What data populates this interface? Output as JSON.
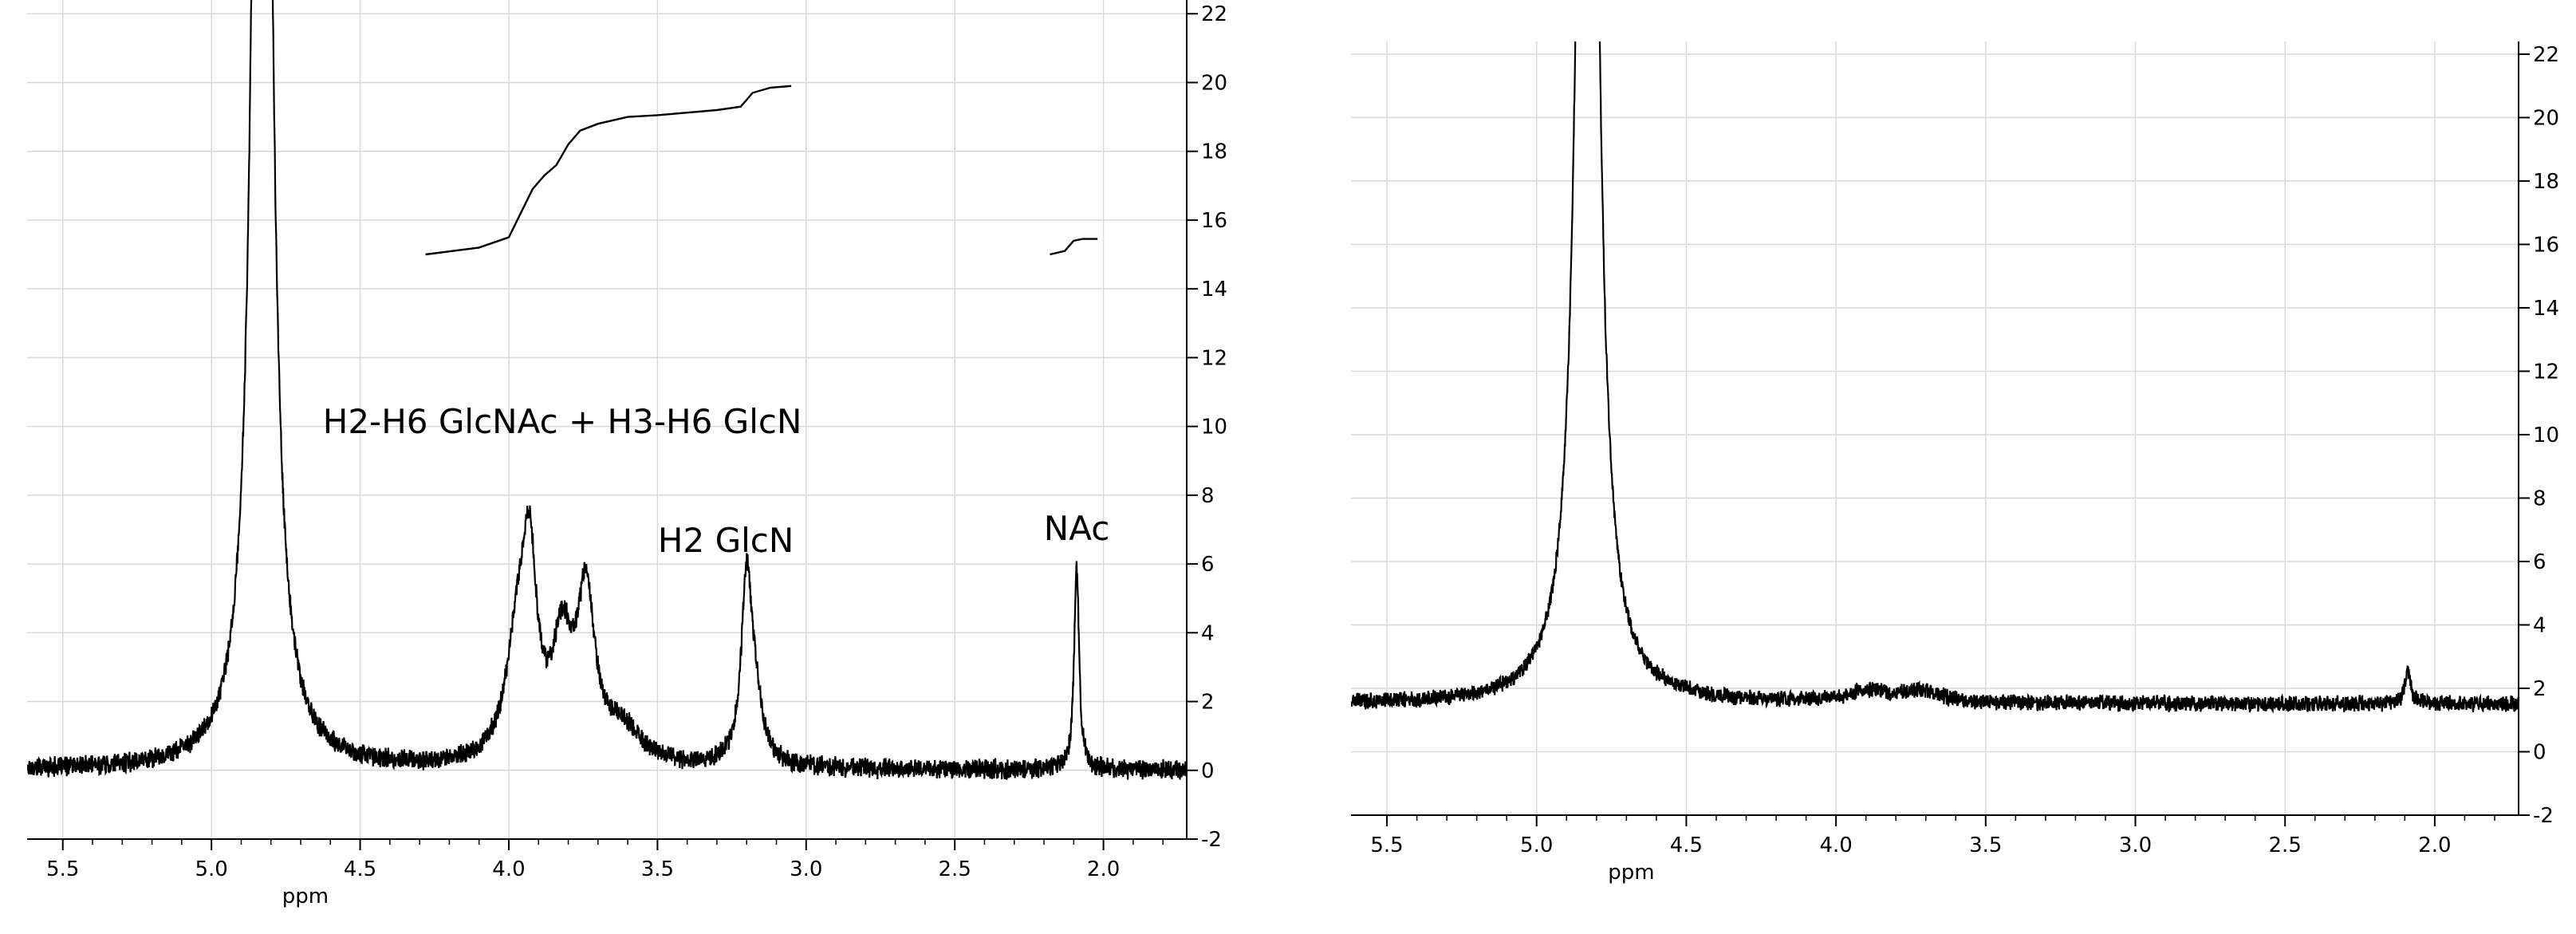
{
  "chart_data": [
    {
      "type": "line",
      "xlabel": "ppm",
      "xlim": [
        5.62,
        1.72
      ],
      "ylim": [
        -2,
        22.4
      ],
      "xticks": [
        5.5,
        5.0,
        4.5,
        4.0,
        3.5,
        3.0,
        2.5,
        2.0
      ],
      "xtick_labels": [
        "5.5",
        "5.0",
        "4.5",
        "4.0",
        "3.5",
        "3.0",
        "2.5",
        "2.0"
      ],
      "yticks": [
        -2,
        0,
        2,
        4,
        6,
        8,
        10,
        12,
        14,
        16,
        18,
        20,
        22
      ],
      "ytick_labels": [
        "-2",
        "0",
        "2",
        "4",
        "6",
        "8",
        "10",
        "12",
        "14",
        "16",
        "18",
        "20",
        "22"
      ],
      "grid": true,
      "baseline": 0,
      "noise": 0.25,
      "peaks": [
        {
          "center": 4.83,
          "height": 60,
          "width": 0.028
        },
        {
          "center": 3.97,
          "height": 3.3,
          "width": 0.045
        },
        {
          "center": 3.93,
          "height": 5.0,
          "width": 0.03
        },
        {
          "center": 3.82,
          "height": 3.2,
          "width": 0.04
        },
        {
          "center": 3.74,
          "height": 4.6,
          "width": 0.035
        },
        {
          "center": 3.62,
          "height": 1.0,
          "width": 0.08
        },
        {
          "center": 3.2,
          "height": 5.2,
          "width": 0.022
        },
        {
          "center": 3.17,
          "height": 1.5,
          "width": 0.03
        },
        {
          "center": 2.09,
          "height": 5.8,
          "width": 0.01
        }
      ],
      "integrals": [
        {
          "x": [
            4.28,
            4.1,
            4.0,
            3.96,
            3.92,
            3.88,
            3.84,
            3.8,
            3.76,
            3.7,
            3.6,
            3.5,
            3.3,
            3.22,
            3.18,
            3.12,
            3.05
          ],
          "y": [
            15.0,
            15.2,
            15.5,
            16.2,
            16.9,
            17.3,
            17.6,
            18.2,
            18.6,
            18.8,
            19.0,
            19.05,
            19.2,
            19.3,
            19.7,
            19.85,
            19.9
          ]
        },
        {
          "x": [
            2.18,
            2.13,
            2.1,
            2.07,
            2.02
          ],
          "y": [
            15.0,
            15.1,
            15.4,
            15.45,
            15.45
          ]
        }
      ],
      "annotations": [
        {
          "text": "H2-H6 GlcNAc + H3-H6 GlcN",
          "x": 3.82,
          "y": 9.8
        },
        {
          "text": "H2 GlcN",
          "x": 3.27,
          "y": 6.35
        },
        {
          "text": "NAc",
          "x": 2.09,
          "y": 6.7
        }
      ]
    },
    {
      "type": "line",
      "xlabel": "ppm",
      "xlim": [
        5.62,
        1.72
      ],
      "ylim": [
        -2,
        22.4
      ],
      "xticks": [
        5.5,
        5.0,
        4.5,
        4.0,
        3.5,
        3.0,
        2.5,
        2.0
      ],
      "xtick_labels": [
        "5.5",
        "5.0",
        "4.5",
        "4.0",
        "3.5",
        "3.0",
        "2.5",
        "2.0"
      ],
      "yticks": [
        -2,
        0,
        2,
        4,
        6,
        8,
        10,
        12,
        14,
        16,
        18,
        20,
        22
      ],
      "ytick_labels": [
        "-2",
        "0",
        "2",
        "4",
        "6",
        "8",
        "10",
        "12",
        "14",
        "16",
        "18",
        "20",
        "22"
      ],
      "grid": true,
      "baseline": 1.5,
      "noise": 0.22,
      "peaks": [
        {
          "center": 4.83,
          "height": 60,
          "width": 0.03
        },
        {
          "center": 3.9,
          "height": 0.35,
          "width": 0.08
        },
        {
          "center": 3.72,
          "height": 0.35,
          "width": 0.08
        },
        {
          "center": 2.09,
          "height": 1.0,
          "width": 0.012
        }
      ],
      "integrals": [],
      "annotations": []
    }
  ]
}
